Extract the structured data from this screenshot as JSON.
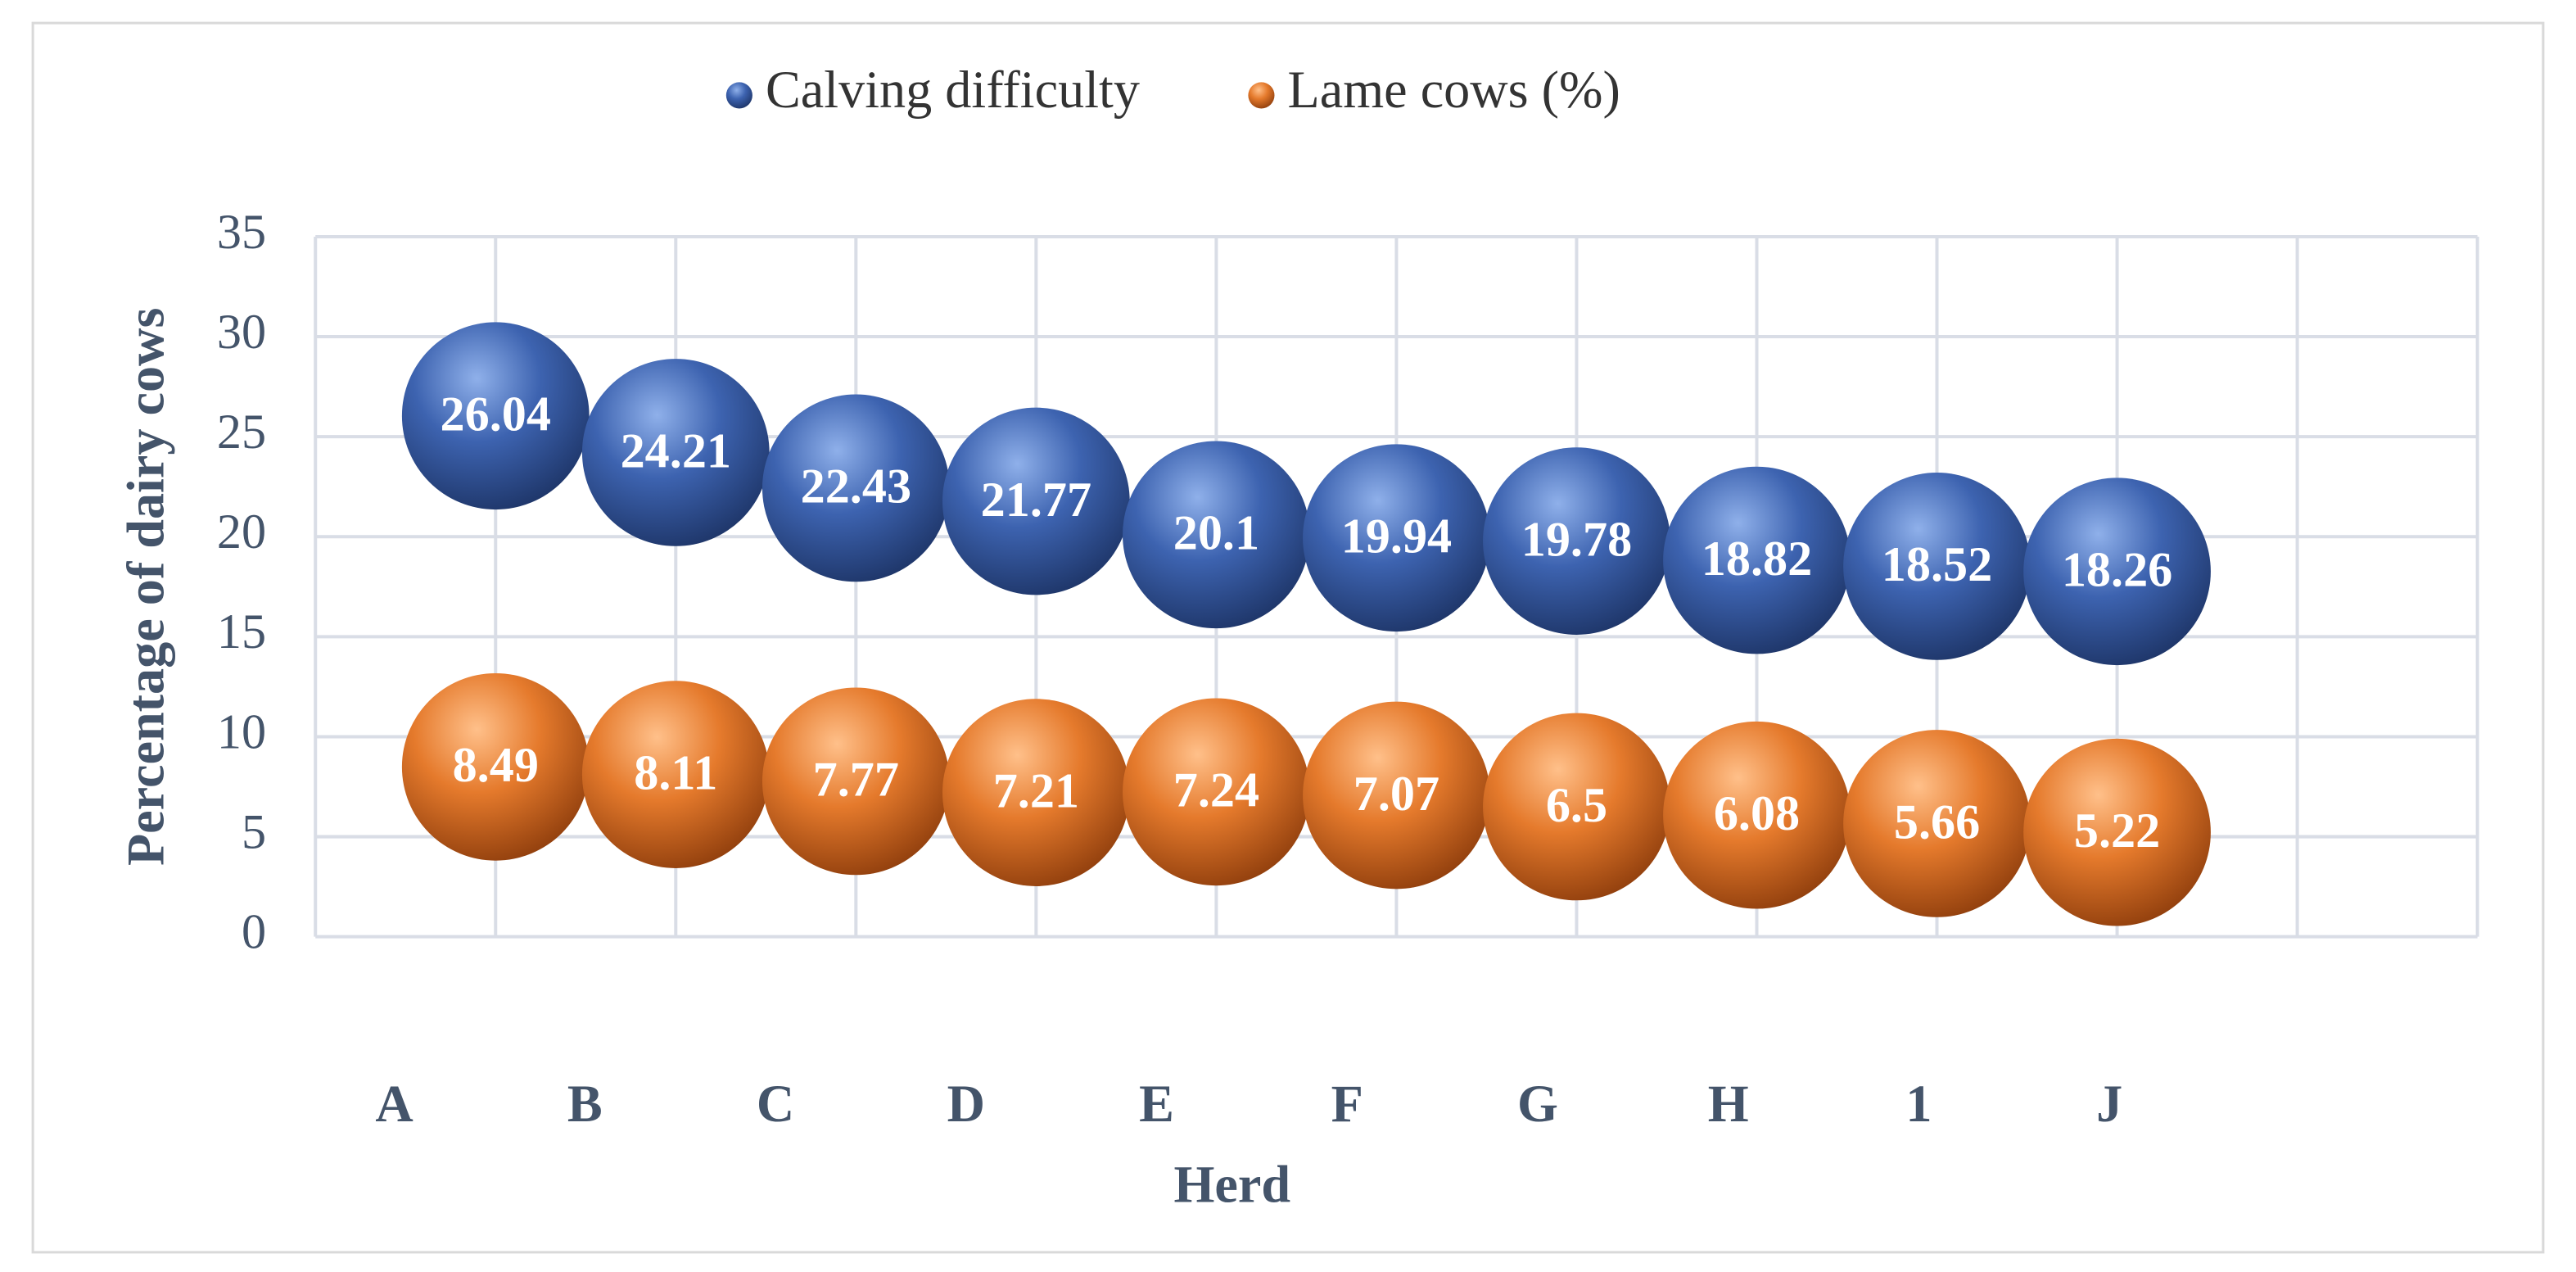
{
  "chart_data": {
    "type": "bubble",
    "x_label": "Herd",
    "y_label": "Percentage of dairy cows",
    "categories": [
      "A",
      "B",
      "C",
      "D",
      "E",
      "F",
      "G",
      "H",
      "1",
      "J"
    ],
    "series": [
      {
        "name": "Calving difficulty",
        "color": "#3d63b0",
        "values": [
          26.04,
          24.21,
          22.43,
          21.77,
          20.1,
          19.94,
          19.78,
          18.82,
          18.52,
          18.26
        ]
      },
      {
        "name": "Lame cows (%)",
        "color": "#e57a2c",
        "values": [
          8.49,
          8.11,
          7.77,
          7.21,
          7.24,
          7.07,
          6.5,
          6.08,
          5.66,
          5.22
        ]
      }
    ],
    "xlim": [
      0,
      12
    ],
    "xticks": [
      0,
      1,
      2,
      3,
      4,
      5,
      6,
      7,
      8,
      9,
      10,
      11,
      12
    ],
    "ylim": [
      0,
      35
    ],
    "yticks": [
      0,
      5,
      10,
      15,
      20,
      25,
      30,
      35
    ],
    "grid": true,
    "legend": "top"
  }
}
